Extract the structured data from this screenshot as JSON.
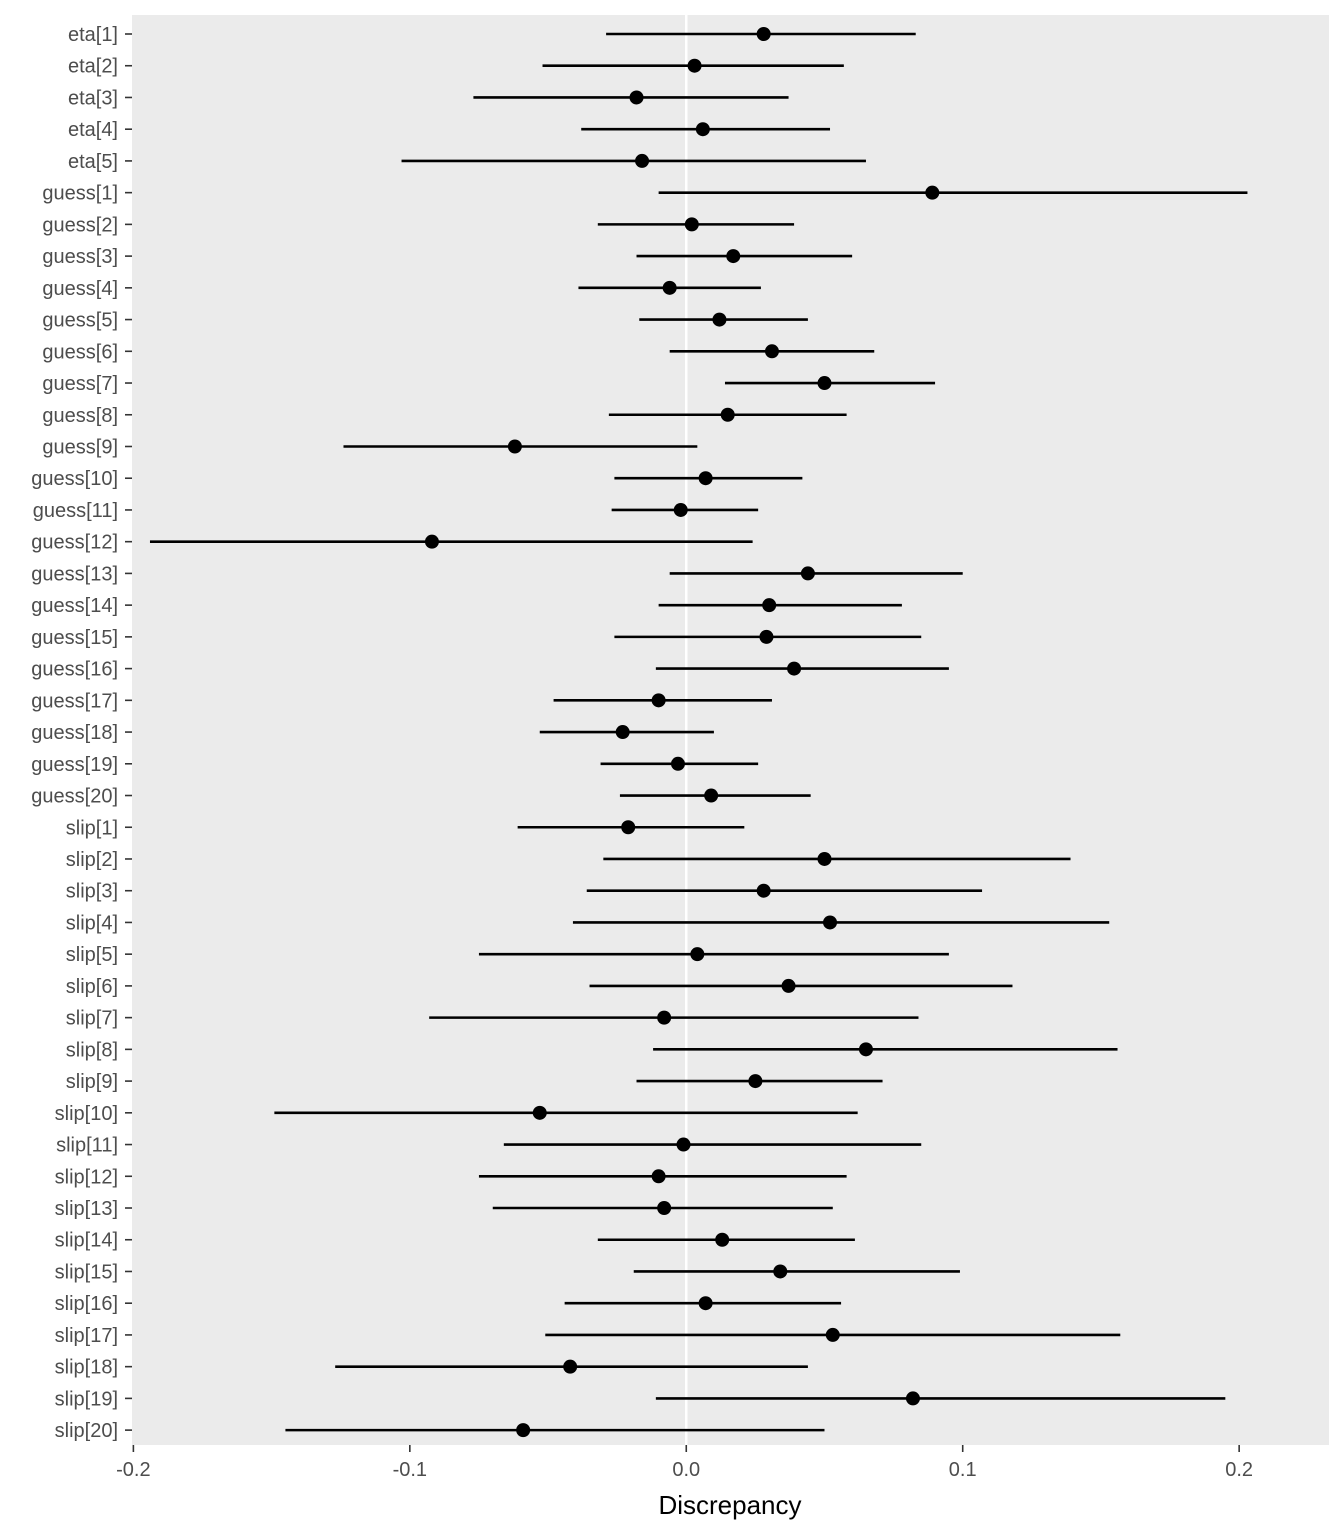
{
  "chart_data": {
    "type": "interval",
    "xlabel": "Discrepancy",
    "ylabel": "",
    "xlim": [
      -0.2005,
      0.2325
    ],
    "xticks": [
      -0.2,
      -0.1,
      0.0,
      0.1,
      0.2
    ],
    "xtick_labels": [
      "-0.2",
      "-0.1",
      "0.0",
      "0.1",
      "0.2"
    ],
    "reference_line": 0.0,
    "grid": false,
    "legend": "none",
    "categories": [
      "eta[1]",
      "eta[2]",
      "eta[3]",
      "eta[4]",
      "eta[5]",
      "guess[1]",
      "guess[2]",
      "guess[3]",
      "guess[4]",
      "guess[5]",
      "guess[6]",
      "guess[7]",
      "guess[8]",
      "guess[9]",
      "guess[10]",
      "guess[11]",
      "guess[12]",
      "guess[13]",
      "guess[14]",
      "guess[15]",
      "guess[16]",
      "guess[17]",
      "guess[18]",
      "guess[19]",
      "guess[20]",
      "slip[1]",
      "slip[2]",
      "slip[3]",
      "slip[4]",
      "slip[5]",
      "slip[6]",
      "slip[7]",
      "slip[8]",
      "slip[9]",
      "slip[10]",
      "slip[11]",
      "slip[12]",
      "slip[13]",
      "slip[14]",
      "slip[15]",
      "slip[16]",
      "slip[17]",
      "slip[18]",
      "slip[19]",
      "slip[20]"
    ],
    "estimate": [
      0.028,
      0.003,
      -0.018,
      0.006,
      -0.016,
      0.089,
      0.002,
      0.017,
      -0.006,
      0.012,
      0.031,
      0.05,
      0.015,
      -0.062,
      0.007,
      -0.002,
      -0.092,
      0.044,
      0.03,
      0.029,
      0.039,
      -0.01,
      -0.023,
      -0.003,
      0.009,
      -0.021,
      0.05,
      0.028,
      0.052,
      0.004,
      0.037,
      -0.008,
      0.065,
      0.025,
      -0.053,
      -0.001,
      -0.01,
      -0.008,
      0.013,
      0.034,
      0.007,
      0.053,
      -0.042,
      0.082,
      -0.059
    ],
    "lower": [
      -0.029,
      -0.052,
      -0.077,
      -0.038,
      -0.103,
      -0.01,
      -0.032,
      -0.018,
      -0.039,
      -0.017,
      -0.006,
      0.014,
      -0.028,
      -0.124,
      -0.026,
      -0.027,
      -0.194,
      -0.006,
      -0.01,
      -0.026,
      -0.011,
      -0.048,
      -0.053,
      -0.031,
      -0.024,
      -0.061,
      -0.03,
      -0.036,
      -0.041,
      -0.075,
      -0.035,
      -0.093,
      -0.012,
      -0.018,
      -0.149,
      -0.066,
      -0.075,
      -0.07,
      -0.032,
      -0.019,
      -0.044,
      -0.051,
      -0.127,
      -0.011,
      -0.145
    ],
    "upper": [
      0.083,
      0.057,
      0.037,
      0.052,
      0.065,
      0.203,
      0.039,
      0.06,
      0.027,
      0.044,
      0.068,
      0.09,
      0.058,
      0.004,
      0.042,
      0.026,
      0.024,
      0.1,
      0.078,
      0.085,
      0.095,
      0.031,
      0.01,
      0.026,
      0.045,
      0.021,
      0.139,
      0.107,
      0.153,
      0.095,
      0.118,
      0.084,
      0.156,
      0.071,
      0.062,
      0.085,
      0.058,
      0.053,
      0.061,
      0.099,
      0.056,
      0.157,
      0.044,
      0.195,
      0.05
    ]
  },
  "style": {
    "panel_color": "#ebebeb",
    "reference_line_color": "#ffffff",
    "mark_color": "#000000",
    "tick_label_color": "#4d4d4d",
    "tick_color": "#333333"
  }
}
